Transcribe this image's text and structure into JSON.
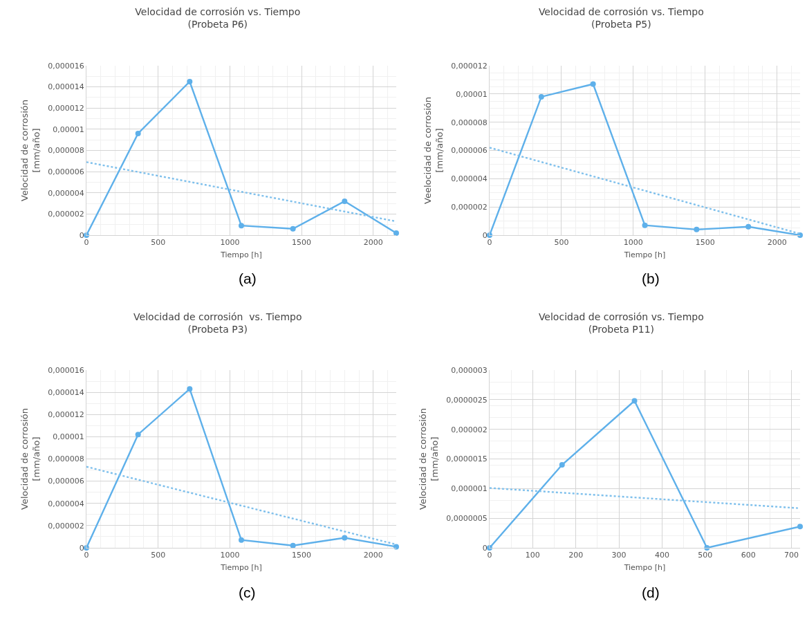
{
  "chart_data": [
    {
      "type": "line",
      "title": "Velocidad de corrosión vs. Tiempo",
      "subtitle": "(Probeta P6)",
      "xlabel": "Tiempo [h]",
      "ylabel": "Velocidad de corrosión\n[mm/año]",
      "annotations": [
        "(a)"
      ],
      "xlim": [
        0,
        2160
      ],
      "xticks": [
        0,
        500,
        1000,
        1500,
        2000
      ],
      "ylim": [
        0,
        1.6e-05
      ],
      "yticks": [
        {
          "value": 0,
          "label": "0"
        },
        {
          "value": 2e-06,
          "label": "0,000002"
        },
        {
          "value": 4e-06,
          "label": "0,000004"
        },
        {
          "value": 6e-06,
          "label": "0,000006"
        },
        {
          "value": 8e-06,
          "label": "0,000008"
        },
        {
          "value": 1e-05,
          "label": "0,00001"
        },
        {
          "value": 1.2e-05,
          "label": "0,000012"
        },
        {
          "value": 1.4e-05,
          "label": "0,000014"
        },
        {
          "value": 1.6e-05,
          "label": "0,000016"
        }
      ],
      "grid": true,
      "marker": "circle",
      "line_style": "solid",
      "series": [
        {
          "color": "#5eb0ea",
          "x": [
            0,
            360,
            720,
            1080,
            1440,
            1800,
            2160
          ],
          "values": [
            0,
            9.6e-06,
            1.45e-05,
            9e-07,
            6e-07,
            3.2e-06,
            2e-07
          ]
        },
        {
          "type": "line",
          "marker": "none",
          "line_style": "dotted",
          "color": "#7fc0ec",
          "x": [
            0,
            2160
          ],
          "values": [
            6.9e-06,
            1.3e-06
          ]
        }
      ]
    },
    {
      "type": "line",
      "title": "Velocidad de corrosión vs. Tiempo",
      "subtitle": "(Probeta P5)",
      "xlabel": "Tiempo [h]",
      "ylabel": "Veelocidad de corrosión\n[mm/año]",
      "annotations": [
        "(b)"
      ],
      "xlim": [
        0,
        2160
      ],
      "xticks": [
        0,
        500,
        1000,
        1500,
        2000
      ],
      "ylim": [
        0,
        1.2e-05
      ],
      "yticks": [
        {
          "value": 0,
          "label": "0"
        },
        {
          "value": 2e-06,
          "label": "0,000002"
        },
        {
          "value": 4e-06,
          "label": "0,000004"
        },
        {
          "value": 6e-06,
          "label": "0,000006"
        },
        {
          "value": 8e-06,
          "label": "0,000008"
        },
        {
          "value": 1e-05,
          "label": "0,00001"
        },
        {
          "value": 1.2e-05,
          "label": "0,000012"
        }
      ],
      "grid": true,
      "marker": "circle",
      "line_style": "solid",
      "series": [
        {
          "color": "#5eb0ea",
          "x": [
            0,
            360,
            720,
            1080,
            1440,
            1800,
            2160
          ],
          "values": [
            0,
            9.8e-06,
            1.07e-05,
            7e-07,
            4e-07,
            6e-07,
            0
          ]
        },
        {
          "type": "line",
          "marker": "none",
          "line_style": "dotted",
          "color": "#7fc0ec",
          "x": [
            0,
            2160
          ],
          "values": [
            6.2e-06,
            1e-07
          ]
        }
      ]
    },
    {
      "type": "line",
      "title": "Velocidad de corrosión  vs. Tiempo",
      "subtitle": "(Probeta P3)",
      "xlabel": "Tiempo [h]",
      "ylabel": "Velocidad de corrosión\n[mm/año]",
      "annotations": [
        "(c)"
      ],
      "xlim": [
        0,
        2160
      ],
      "xticks": [
        0,
        500,
        1000,
        1500,
        2000
      ],
      "ylim": [
        0,
        1.6e-05
      ],
      "yticks": [
        {
          "value": 0,
          "label": "0"
        },
        {
          "value": 2e-06,
          "label": "0,000002"
        },
        {
          "value": 4e-06,
          "label": "0,000004"
        },
        {
          "value": 6e-06,
          "label": "0,000006"
        },
        {
          "value": 8e-06,
          "label": "0,000008"
        },
        {
          "value": 1e-05,
          "label": "0,00001"
        },
        {
          "value": 1.2e-05,
          "label": "0,000012"
        },
        {
          "value": 1.4e-05,
          "label": "0,000014"
        },
        {
          "value": 1.6e-05,
          "label": "0,000016"
        }
      ],
      "grid": true,
      "marker": "circle",
      "line_style": "solid",
      "series": [
        {
          "color": "#5eb0ea",
          "x": [
            0,
            360,
            720,
            1080,
            1440,
            1800,
            2160
          ],
          "values": [
            0,
            1.02e-05,
            1.43e-05,
            7e-07,
            2e-07,
            9e-07,
            1e-07
          ]
        },
        {
          "type": "line",
          "marker": "none",
          "line_style": "dotted",
          "color": "#7fc0ec",
          "x": [
            0,
            2160
          ],
          "values": [
            7.3e-06,
            3e-07
          ]
        }
      ]
    },
    {
      "type": "line",
      "title": "Velocidad de corrosión vs. Tiempo",
      "subtitle": "(Probeta P11)",
      "xlabel": "Tiempo [h]",
      "ylabel": "Velocidad de corrosión\n[mm/año]",
      "annotations": [
        "(d)"
      ],
      "xlim": [
        0,
        720
      ],
      "xticks": [
        0,
        100,
        200,
        300,
        400,
        500,
        600,
        700
      ],
      "ylim": [
        0,
        3e-06
      ],
      "yticks": [
        {
          "value": 0,
          "label": "0"
        },
        {
          "value": 5e-07,
          "label": "0,0000005"
        },
        {
          "value": 1e-06,
          "label": "0,000001"
        },
        {
          "value": 1.5e-06,
          "label": "0,0000015"
        },
        {
          "value": 2e-06,
          "label": "0,000002"
        },
        {
          "value": 2.5e-06,
          "label": "0,0000025"
        },
        {
          "value": 3e-06,
          "label": "0,000003"
        }
      ],
      "grid": true,
      "marker": "circle",
      "line_style": "solid",
      "series": [
        {
          "color": "#5eb0ea",
          "x": [
            0,
            168,
            336,
            504,
            720
          ],
          "values": [
            0,
            1.4e-06,
            2.48e-06,
            0,
            3.6e-07
          ]
        },
        {
          "type": "line",
          "marker": "none",
          "line_style": "dotted",
          "color": "#7fc0ec",
          "x": [
            0,
            715
          ],
          "values": [
            1.01e-06,
            6.7e-07
          ]
        }
      ]
    }
  ]
}
